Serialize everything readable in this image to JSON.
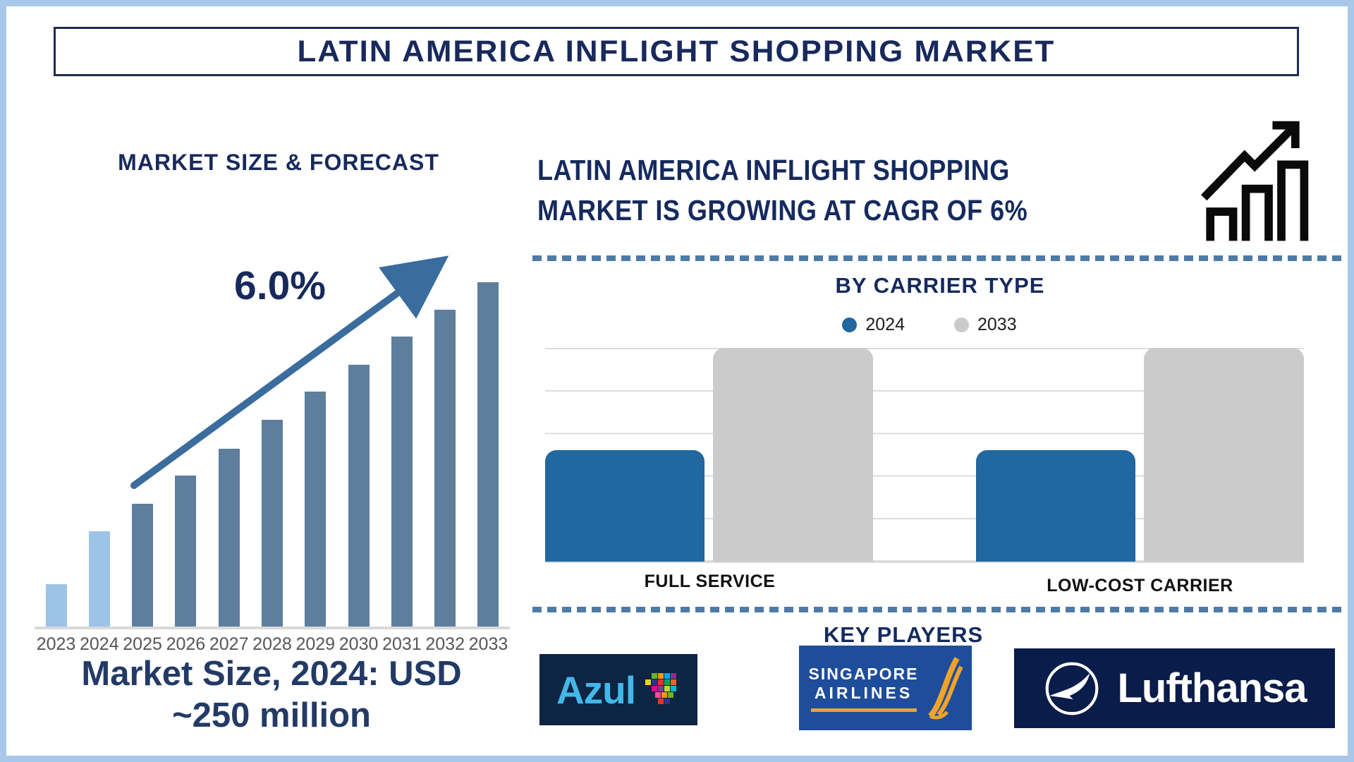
{
  "page": {
    "title": "LATIN AMERICA INFLIGHT SHOPPING MARKET"
  },
  "left_panel": {
    "heading": "MARKET SIZE & FORECAST",
    "cagr_label": "6.0%",
    "footnote_line1": "Market Size, 2024: USD",
    "footnote_line2": "~250 million"
  },
  "right_panel": {
    "headline_line1": "LATIN AMERICA INFLIGHT SHOPPING",
    "headline_line2": "MARKET IS GROWING AT CAGR OF 6%",
    "carrier": {
      "heading": "BY CARRIER TYPE"
    },
    "key_players": {
      "heading": "KEY PLAYERS",
      "azul_text": "Azul",
      "sia_line1": "SINGAPORE",
      "sia_line2": "AIRLINES",
      "lufthansa_text": "Lufthansa"
    }
  },
  "chart_data": [
    {
      "type": "bar",
      "title": "MARKET SIZE & FORECAST",
      "categories": [
        "2023",
        "2024",
        "2025",
        "2026",
        "2027",
        "2028",
        "2029",
        "2030",
        "2031",
        "2032",
        "2033"
      ],
      "bar_heights_pct_of_max": [
        12.3,
        27.7,
        35.6,
        43.8,
        51.7,
        60,
        68.2,
        76,
        84.2,
        92,
        100
      ],
      "y_axis": "none (illustrative, values not labeled)",
      "known_values": {
        "2024": "USD ~250 million",
        "cagr": "6.0%"
      },
      "highlight_years": [
        "2023",
        "2024"
      ],
      "colors": {
        "highlight": "#9dc3e6",
        "normal": "#5e7e9d"
      },
      "annotation": "6.0% with upward trend arrow"
    },
    {
      "type": "bar",
      "title": "BY CARRIER TYPE",
      "categories": [
        "FULL SERVICE",
        "LOW-COST CARRIER"
      ],
      "series": [
        {
          "name": "2024",
          "color": "#2167a0",
          "values_pct": [
            52,
            52
          ]
        },
        {
          "name": "2033",
          "color": "#cbcbcb",
          "values_pct": [
            100,
            100
          ]
        }
      ],
      "y_axis": "none (illustrative, values not labeled)",
      "grid": "horizontal light gray lines",
      "legend_position": "top center"
    }
  ]
}
